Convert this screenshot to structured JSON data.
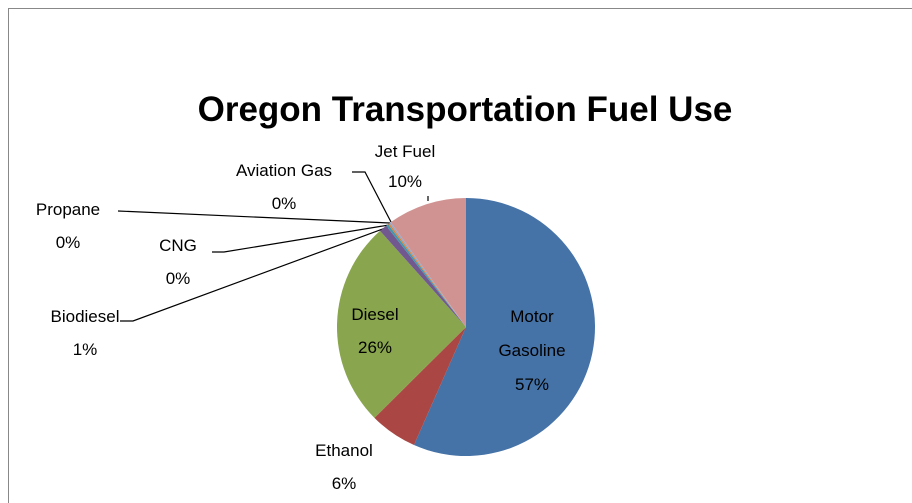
{
  "chart_data": {
    "type": "pie",
    "title": "Oregon Transportation Fuel Use",
    "categories": [
      "Motor Gasoline",
      "Ethanol",
      "Diesel",
      "Biodiesel",
      "CNG",
      "Propane",
      "Aviation Gas",
      "Jet Fuel"
    ],
    "values": [
      57,
      6,
      26,
      1,
      0.3,
      0.2,
      0.2,
      10
    ],
    "value_labels": [
      "57%",
      "6%",
      "26%",
      "1%",
      "0%",
      "0%",
      "0%",
      "10%"
    ],
    "colors": [
      "#4572a7",
      "#aa4643",
      "#89a54e",
      "#71588f",
      "#4198af",
      "#db843d",
      "#93a9cf",
      "#d19392"
    ]
  }
}
